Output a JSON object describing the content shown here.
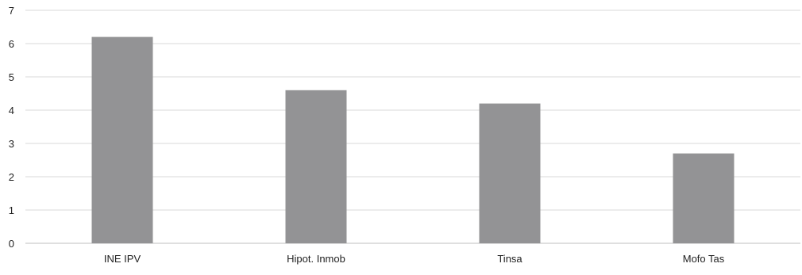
{
  "chart_data": {
    "type": "bar",
    "categories": [
      "INE IPV",
      "Hipot. Inmob",
      "Tinsa",
      "Mofo Tas"
    ],
    "values": [
      6.2,
      4.6,
      4.2,
      2.7
    ],
    "title": "",
    "xlabel": "",
    "ylabel": "",
    "ylim": [
      0,
      7
    ],
    "yticks": [
      "0",
      "1",
      "2",
      "3",
      "4",
      "5",
      "6",
      "7"
    ],
    "grid": "horizontal",
    "legend": "none",
    "colors": {
      "bar": "#939395",
      "grid": "#d9d9d9",
      "axis": "#bfbfbf",
      "text": "#222222"
    }
  }
}
